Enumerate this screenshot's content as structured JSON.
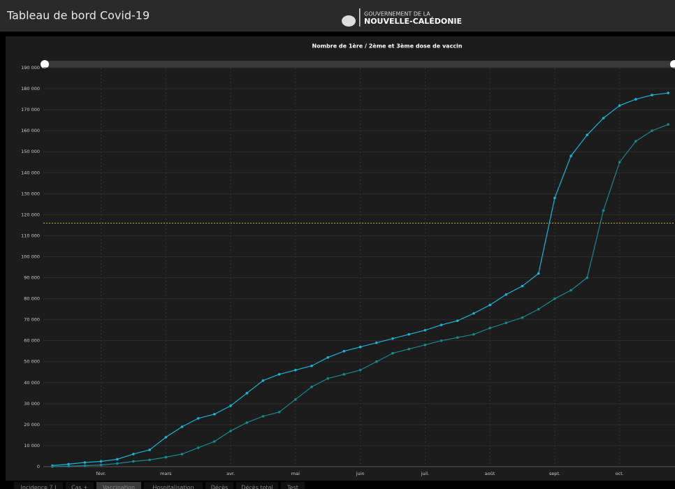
{
  "header": {
    "title": "Tableau de bord Covid-19",
    "logo_line1": "GOUVERNEMENT DE LA",
    "logo_line2": "NOUVELLE-CALÉDONIE"
  },
  "tabs": [
    "Incidence 7 J",
    "Cas +",
    "Vaccination",
    "Hospitalisation",
    "Décès",
    "Décès total",
    "Test"
  ],
  "active_tab": 2,
  "chart_data": {
    "type": "line",
    "title": "Nombre de 1ère / 2ème et 3ème dose de vaccin",
    "categories": [
      null,
      null,
      null,
      "févr.",
      null,
      null,
      null,
      "mars",
      null,
      null,
      null,
      "avr.",
      null,
      null,
      null,
      "mai",
      null,
      null,
      null,
      "juin",
      null,
      null,
      null,
      "juil.",
      null,
      null,
      null,
      "août",
      null,
      null,
      null,
      "sept.",
      null,
      null,
      null,
      "oct.",
      null,
      null,
      null
    ],
    "series": [
      {
        "color": "#1ab4d6",
        "values": [
          500,
          1200,
          2000,
          2500,
          3500,
          6000,
          8000,
          14000,
          19000,
          23000,
          25000,
          29000,
          35000,
          41000,
          44000,
          46000,
          48000,
          52000,
          55000,
          57000,
          59000,
          61000,
          63000,
          65000,
          67500,
          69500,
          73000,
          77000,
          82000,
          86000,
          92000,
          128000,
          148000,
          158000,
          166000,
          172000,
          175000,
          177000,
          178000
        ]
      },
      {
        "color": "#168a8e",
        "values": [
          0,
          200,
          500,
          800,
          1500,
          2500,
          3200,
          4500,
          6000,
          9000,
          12000,
          17000,
          21000,
          24000,
          26000,
          32000,
          38000,
          42000,
          44000,
          46000,
          50000,
          54000,
          56000,
          58000,
          60000,
          61500,
          63000,
          66000,
          68500,
          71000,
          75000,
          80000,
          84000,
          90000,
          122000,
          145000,
          155000,
          160000,
          163000
        ]
      }
    ],
    "ylim": [
      0,
      190000
    ],
    "yticks": [
      0,
      {
        "value": 10000,
        "label": "10 000"
      },
      {
        "value": 20000,
        "label": "20 000"
      },
      {
        "value": 30000,
        "label": "30 000"
      },
      {
        "value": 40000,
        "label": "40 000"
      },
      {
        "value": 50000,
        "label": "50 000"
      },
      {
        "value": 60000,
        "label": "60 000"
      },
      {
        "value": 70000,
        "label": "70 000"
      },
      {
        "value": 80000,
        "label": "80 000"
      },
      {
        "value": 90000,
        "label": "90 000"
      },
      {
        "value": 100000,
        "label": "100 000"
      },
      {
        "value": 110000,
        "label": "110 000"
      },
      {
        "value": 120000,
        "label": "120 000"
      },
      {
        "value": 130000,
        "label": "130 000"
      },
      {
        "value": 140000,
        "label": "140 000"
      },
      {
        "value": 150000,
        "label": "150 000"
      },
      {
        "value": 160000,
        "label": "160 000"
      },
      {
        "value": 170000,
        "label": "170 000"
      },
      {
        "value": 180000,
        "label": "180 000"
      },
      {
        "value": 190000,
        "label": "190 000"
      }
    ],
    "grid": true,
    "reference_line": {
      "value": 116000,
      "color": "#c9b83a"
    }
  }
}
